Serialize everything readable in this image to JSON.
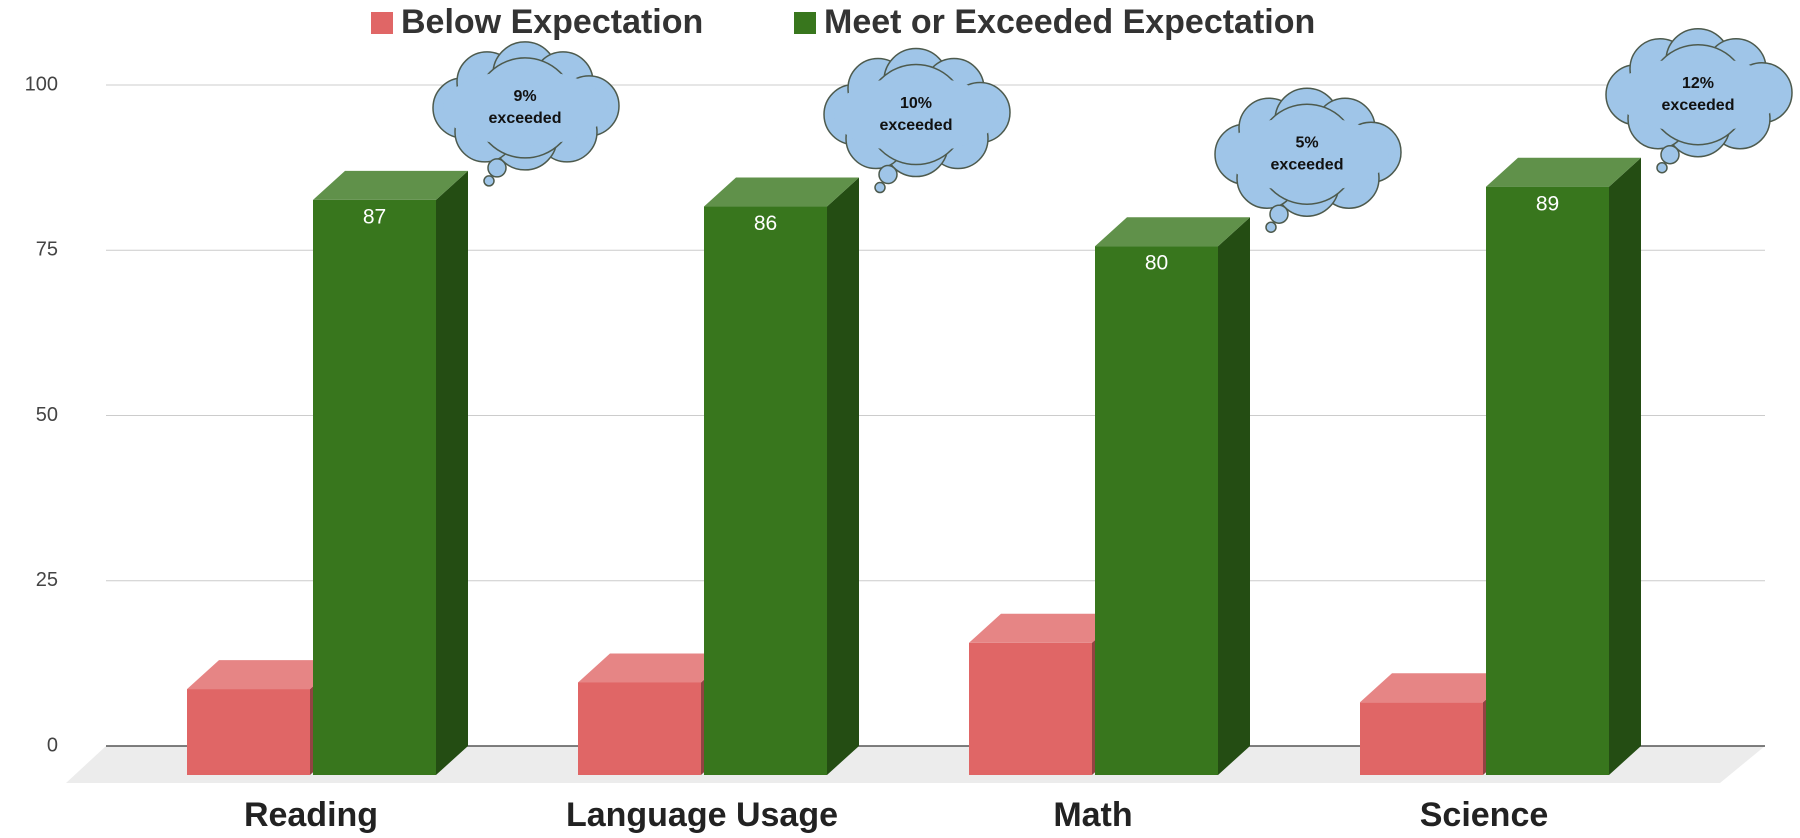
{
  "chart_data": {
    "type": "bar",
    "categories": [
      "Reading",
      "Language Usage",
      "Math",
      "Science"
    ],
    "series": [
      {
        "name": "Below Expectation",
        "color": "#e06666",
        "values": [
          13,
          14,
          20,
          11
        ]
      },
      {
        "name": "Meet or Exceeded Expectation",
        "color": "#38761d",
        "values": [
          87,
          86,
          80,
          89
        ],
        "data_labels": true
      }
    ],
    "annotations": [
      [
        "9%",
        "exceeded"
      ],
      [
        "10%",
        "exceeded"
      ],
      [
        "5%",
        "exceeded"
      ],
      [
        "12%",
        "exceeded"
      ]
    ],
    "ylim": [
      0,
      100
    ],
    "yticks": [
      0,
      25,
      50,
      75,
      100
    ],
    "grid": true,
    "legend": "top"
  }
}
